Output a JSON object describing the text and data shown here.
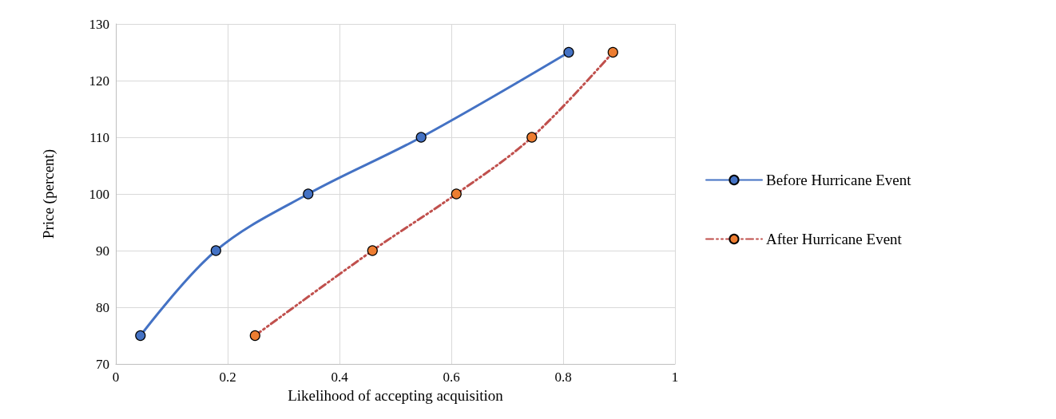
{
  "chart_data": {
    "type": "line",
    "xlabel": "Likelihood of accepting acquisition",
    "ylabel": "Price (percent)",
    "xlim": [
      0,
      1
    ],
    "xticks": [
      0,
      0.2,
      0.4,
      0.6,
      0.8,
      1
    ],
    "ylim": [
      70,
      130
    ],
    "yticks": [
      70,
      80,
      90,
      100,
      110,
      120,
      130
    ],
    "grid": true,
    "legend": "right",
    "marker": "circle",
    "series": [
      {
        "name": "Before Hurricane Event",
        "color": "#4472c4",
        "line_style": "solid",
        "x": [
          0.044,
          0.179,
          0.344,
          0.546,
          0.81
        ],
        "values": [
          75,
          90,
          100,
          110,
          125
        ]
      },
      {
        "name": "After Hurricane Event",
        "color": "#c0504d",
        "colors": [
          "#ed7d31",
          "#ed7d31",
          "#ed7d31",
          "#ed7d31",
          "#ed7d31"
        ],
        "line_style": "dashed",
        "x": [
          0.249,
          0.459,
          0.609,
          0.744,
          0.889
        ],
        "values": [
          75,
          90,
          100,
          110,
          125
        ]
      }
    ]
  }
}
